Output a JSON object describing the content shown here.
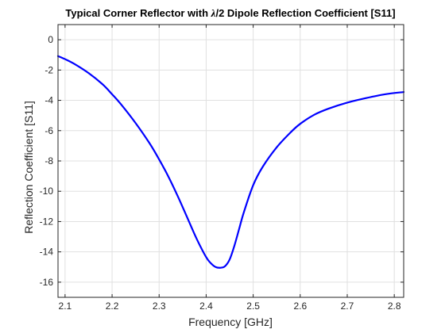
{
  "chart_data": {
    "type": "line",
    "title_prefix": "Typical Corner Reflector with ",
    "title_symbol": "λ",
    "title_suffix": "/2 Dipole Reflection Coefficient [S11]",
    "xlabel": "Frequency [GHz]",
    "ylabel": "Reflection Coefficient [S11]",
    "xlim": [
      2.085,
      2.82
    ],
    "ylim": [
      -17,
      1
    ],
    "xticks": [
      2.1,
      2.2,
      2.3,
      2.4,
      2.5,
      2.6,
      2.7,
      2.8
    ],
    "xtick_labels": [
      "2.1",
      "2.2",
      "2.3",
      "2.4",
      "2.5",
      "2.6",
      "2.7",
      "2.8"
    ],
    "yticks": [
      0,
      -2,
      -4,
      -6,
      -8,
      -10,
      -12,
      -14,
      -16
    ],
    "ytick_labels": [
      "0",
      "-2",
      "-4",
      "-6",
      "-8",
      "-10",
      "-12",
      "-14",
      "-16"
    ],
    "grid": true,
    "colors": {
      "series": "#0000ff",
      "grid": "#e0e0e0",
      "axis": "#262626"
    },
    "series": [
      {
        "x": [
          2.085,
          2.1,
          2.12,
          2.15,
          2.18,
          2.2,
          2.22,
          2.25,
          2.28,
          2.3,
          2.32,
          2.34,
          2.36,
          2.38,
          2.4,
          2.41,
          2.42,
          2.43,
          2.44,
          2.45,
          2.46,
          2.47,
          2.48,
          2.5,
          2.52,
          2.55,
          2.58,
          2.6,
          2.63,
          2.66,
          2.7,
          2.74,
          2.78,
          2.82
        ],
        "y": [
          -1.08,
          -1.28,
          -1.6,
          -2.2,
          -2.95,
          -3.6,
          -4.3,
          -5.5,
          -6.85,
          -7.9,
          -9.05,
          -10.35,
          -11.75,
          -13.15,
          -14.35,
          -14.75,
          -15.0,
          -15.05,
          -14.95,
          -14.5,
          -13.6,
          -12.5,
          -11.4,
          -9.6,
          -8.4,
          -7.1,
          -6.1,
          -5.55,
          -4.95,
          -4.55,
          -4.15,
          -3.85,
          -3.6,
          -3.45
        ]
      }
    ]
  }
}
